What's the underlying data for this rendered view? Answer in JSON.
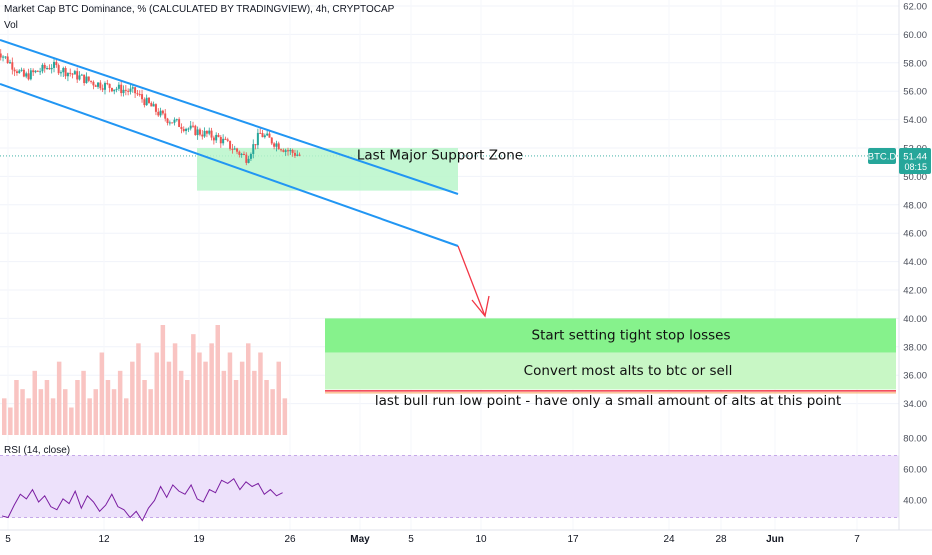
{
  "header": {
    "title": "Market Cap BTC Dominance, % (CALCULATED BY TRADINGVIEW), 4h, CRYPTOCAP",
    "vol_label": "Vol",
    "rsi_label": "RSI (14, close)"
  },
  "price_axis": {
    "ticks": [
      "62.00",
      "60.00",
      "58.00",
      "56.00",
      "54.00",
      "52.00",
      "50.00",
      "48.00",
      "46.00",
      "44.00",
      "42.00",
      "40.00",
      "38.00",
      "36.00",
      "34.00"
    ],
    "symbol": "BTC.D",
    "last_price": "51.44",
    "countdown": "08:15"
  },
  "rsi_axis": {
    "ticks": [
      "80.00",
      "60.00",
      "40.00"
    ]
  },
  "time_axis": {
    "labels": [
      "5",
      "12",
      "19",
      "26",
      "May",
      "5",
      "10",
      "17",
      "24",
      "28",
      "Jun",
      "7"
    ]
  },
  "annotations": {
    "support_zone": "Last Major Support Zone",
    "tight_stops": "Start setting tight stop losses",
    "convert_alts": "Convert most alts to btc or sell",
    "bull_run_low": "last bull run low point - have only a small amount of alts at this point"
  },
  "colors": {
    "channel": "#2196f3",
    "arrow": "#f23645",
    "support_zone": "#b9f6ca",
    "green_zone_dark": "#86f28c",
    "green_zone_light": "#c8f7c5",
    "bull_low_line": "#f23645",
    "rsi_band": "#ede1fb",
    "rsi_line": "#7b1fa2",
    "candle_up": "#26a69a",
    "candle_down": "#ef5350",
    "volume": "#f9c4c2",
    "price_label": "#26a69a"
  },
  "chart_data": {
    "type": "candlestick",
    "title": "Market Cap BTC Dominance, % (CALCULATED BY TRADINGVIEW), 4h, CRYPTOCAP",
    "interval": "4h",
    "ylim": [
      33,
      62.5
    ],
    "last_value": 51.44,
    "x": [
      "Apr 5",
      "Apr 12",
      "Apr 19",
      "Apr 26"
    ],
    "approx_close_path": [
      {
        "x": "Apr 4",
        "y": 59.0
      },
      {
        "x": "Apr 6",
        "y": 57.0
      },
      {
        "x": "Apr 8",
        "y": 57.8
      },
      {
        "x": "Apr 11",
        "y": 56.6
      },
      {
        "x": "Apr 14",
        "y": 55.9
      },
      {
        "x": "Apr 16",
        "y": 54.2
      },
      {
        "x": "Apr 18",
        "y": 53.3
      },
      {
        "x": "Apr 20",
        "y": 52.7
      },
      {
        "x": "Apr 22",
        "y": 51.3
      },
      {
        "x": "Apr 23",
        "y": 53.0
      },
      {
        "x": "Apr 25",
        "y": 51.8
      },
      {
        "x": "Apr 26",
        "y": 51.44
      }
    ],
    "annotations": [
      {
        "type": "zone",
        "text": "Last Major Support Zone",
        "range": [
          49.0,
          52.0
        ]
      },
      {
        "type": "zone",
        "text": "Start setting tight stop losses",
        "range": [
          37.6,
          40.0
        ]
      },
      {
        "type": "zone",
        "text": "Convert most alts to btc or sell",
        "range": [
          35.0,
          37.6
        ]
      },
      {
        "type": "level",
        "text": "last bull run low point - have only a small amount of alts at this point",
        "value": 34.9
      }
    ],
    "rsi": {
      "name": "RSI (14, close)",
      "period": 14,
      "band": [
        30,
        70
      ],
      "ylim": [
        25,
        80
      ],
      "values": [
        31,
        30,
        38,
        45,
        42,
        48,
        40,
        44,
        37,
        35,
        42,
        39,
        47,
        36,
        44,
        40,
        34,
        38,
        45,
        37,
        35,
        30,
        34,
        28,
        36,
        41,
        50,
        43,
        51,
        47,
        45,
        51,
        42,
        40,
        48,
        46,
        54,
        52,
        55,
        48,
        53,
        50,
        52,
        45,
        48,
        44,
        46
      ]
    },
    "volume": {
      "values": [
        4,
        3,
        6,
        5,
        4,
        7,
        5,
        6,
        4,
        8,
        5,
        3,
        6,
        7,
        4,
        5,
        9,
        6,
        5,
        7,
        4,
        8,
        10,
        6,
        5,
        9,
        12,
        8,
        10,
        7,
        6,
        11,
        9,
        8,
        10,
        12,
        7,
        9,
        6,
        8,
        10,
        7,
        9,
        6,
        5,
        8,
        4
      ]
    }
  }
}
